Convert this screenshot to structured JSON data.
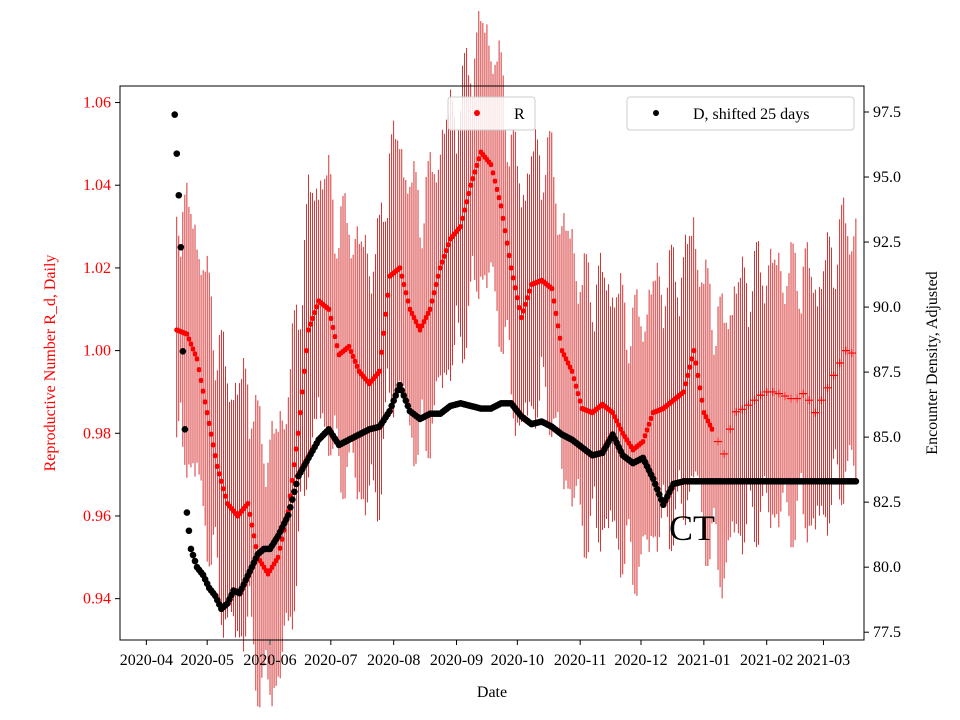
{
  "chart_data": {
    "type": "scatter",
    "xlabel": "Date",
    "ylabel_left": "Reproductive Number R_d, Daily",
    "ylabel_right": "Encounter Density, Adjusted",
    "annotation": "CT",
    "x_tick_labels": [
      "2020-04",
      "2020-05",
      "2020-06",
      "2020-07",
      "2020-08",
      "2020-09",
      "2020-10",
      "2020-11",
      "2020-12",
      "2021-01",
      "2021-02",
      "2021-03"
    ],
    "xlim_days": [
      -13,
      354
    ],
    "y_left_ticks": [
      "0.94",
      "0.96",
      "0.98",
      "1.00",
      "1.02",
      "1.04",
      "1.06"
    ],
    "ylim_left": [
      0.93,
      1.064
    ],
    "y_right_ticks": [
      "77.5",
      "80.0",
      "82.5",
      "85.0",
      "87.5",
      "90.0",
      "92.5",
      "95.0",
      "97.5"
    ],
    "ylim_right": [
      77.2,
      98.5
    ],
    "colors": {
      "R": "#ff0000",
      "D": "#000000",
      "error": "#cc0000",
      "left_axis": "#ff0000"
    },
    "legend": {
      "R": "R",
      "D": "D, shifted 25 days"
    },
    "R_series": {
      "name": "R",
      "x_days": [
        15,
        20,
        25,
        30,
        35,
        40,
        45,
        50,
        55,
        60,
        65,
        70,
        75,
        80,
        85,
        90,
        95,
        100,
        105,
        110,
        115,
        120,
        125,
        130,
        135,
        140,
        145,
        150,
        155,
        160,
        165,
        170,
        175,
        180,
        185,
        190,
        195,
        200,
        205,
        210,
        215,
        220,
        225,
        230,
        235,
        240,
        245,
        250,
        255,
        260,
        265,
        270,
        275,
        280,
        285,
        290,
        295,
        300,
        305,
        310,
        315,
        320,
        325,
        330,
        335,
        340,
        345,
        350
      ],
      "values": [
        1.005,
        1.004,
        0.998,
        0.985,
        0.972,
        0.963,
        0.96,
        0.963,
        0.95,
        0.946,
        0.95,
        0.961,
        0.98,
        1.005,
        1.012,
        1.01,
        0.999,
        1.001,
        0.995,
        0.992,
        0.995,
        1.018,
        1.02,
        1.01,
        1.005,
        1.01,
        1.02,
        1.027,
        1.03,
        1.04,
        1.048,
        1.045,
        1.035,
        1.02,
        1.008,
        1.016,
        1.017,
        1.015,
        1.0,
        0.995,
        0.986,
        0.985,
        0.987,
        0.985,
        0.98,
        0.976,
        0.978,
        0.985,
        0.986,
        0.988,
        0.99,
        1.0,
        0.985,
        0.98,
        0.975,
        0.985,
        0.986,
        0.988,
        0.99,
        0.99,
        0.989,
        0.988,
        0.99,
        0.985,
        0.99,
        0.995,
        1.0,
        0.999
      ]
    },
    "D_series": {
      "name": "D, shifted 25 days",
      "x_days": [
        14,
        15,
        16,
        17,
        18,
        19,
        20,
        22,
        25,
        28,
        31,
        34,
        37,
        40,
        43,
        46,
        49,
        52,
        55,
        58,
        61,
        65,
        70,
        75,
        80,
        85,
        90,
        95,
        100,
        105,
        110,
        115,
        120,
        125,
        130,
        135,
        140,
        145,
        150,
        155,
        160,
        165,
        170,
        175,
        180,
        185,
        190,
        195,
        200,
        205,
        210,
        215,
        220,
        225,
        230,
        235,
        240,
        245,
        250,
        255,
        260,
        265,
        270,
        275,
        280,
        285,
        290,
        295,
        300,
        305,
        310,
        315,
        320,
        325,
        330,
        335,
        340,
        345,
        350
      ],
      "values": [
        97.4,
        95.9,
        94.3,
        92.3,
        88.3,
        85.3,
        82.1,
        80.7,
        80.0,
        79.7,
        79.2,
        78.9,
        78.4,
        78.6,
        79.1,
        79.0,
        79.5,
        80.0,
        80.5,
        80.7,
        80.7,
        81.2,
        82.0,
        83.5,
        84.2,
        84.9,
        85.3,
        84.7,
        84.9,
        85.1,
        85.3,
        85.4,
        86.0,
        87.0,
        86.0,
        85.7,
        85.9,
        85.9,
        86.2,
        86.3,
        86.2,
        86.1,
        86.1,
        86.3,
        86.3,
        85.8,
        85.5,
        85.6,
        85.4,
        85.1,
        84.9,
        84.6,
        84.3,
        84.4,
        85.1,
        84.3,
        84.0,
        84.2,
        83.4,
        82.4,
        83.2,
        83.3,
        83.3,
        83.3,
        83.3,
        83.3,
        83.3,
        83.3,
        83.3,
        83.3,
        83.3,
        83.3,
        83.3,
        83.3,
        83.3,
        83.3,
        83.3,
        83.3,
        83.3
      ]
    }
  }
}
